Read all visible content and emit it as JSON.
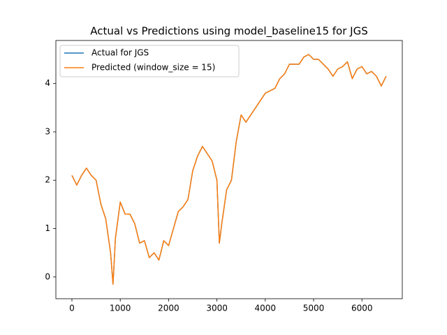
{
  "chart_data": {
    "type": "line",
    "title": "Actual vs Predictions using model_baseline15 for JGS",
    "x": [
      0,
      100,
      200,
      300,
      400,
      500,
      600,
      700,
      800,
      850,
      900,
      1000,
      1100,
      1200,
      1300,
      1400,
      1500,
      1600,
      1700,
      1800,
      1900,
      2000,
      2100,
      2200,
      2300,
      2400,
      2500,
      2600,
      2700,
      2800,
      2900,
      3000,
      3050,
      3100,
      3200,
      3300,
      3400,
      3500,
      3600,
      3700,
      3800,
      3900,
      4000,
      4100,
      4200,
      4300,
      4400,
      4500,
      4600,
      4700,
      4800,
      4900,
      5000,
      5100,
      5200,
      5300,
      5400,
      5500,
      5600,
      5700,
      5800,
      5900,
      6000,
      6100,
      6200,
      6300,
      6400,
      6500
    ],
    "series": [
      {
        "name": "Actual for JGS",
        "color": "#1f77b4",
        "values": [
          2.1,
          1.9,
          2.1,
          2.25,
          2.1,
          2.0,
          1.5,
          1.2,
          0.5,
          -0.15,
          0.8,
          1.55,
          1.3,
          1.3,
          1.1,
          0.7,
          0.75,
          0.4,
          0.5,
          0.35,
          0.75,
          0.65,
          1.0,
          1.35,
          1.45,
          1.6,
          2.2,
          2.5,
          2.7,
          2.55,
          2.4,
          2.0,
          0.7,
          1.1,
          1.8,
          2.0,
          2.8,
          3.35,
          3.2,
          3.35,
          3.5,
          3.65,
          3.8,
          3.85,
          3.9,
          4.1,
          4.2,
          4.4,
          4.4,
          4.4,
          4.55,
          4.6,
          4.5,
          4.5,
          4.4,
          4.3,
          4.15,
          4.3,
          4.35,
          4.45,
          4.1,
          4.3,
          4.35,
          4.2,
          4.25,
          4.15,
          3.95,
          4.15
        ]
      },
      {
        "name": "Predicted (window_size = 15)",
        "color": "#ff7f0e",
        "values": [
          2.1,
          1.9,
          2.1,
          2.25,
          2.1,
          2.0,
          1.5,
          1.2,
          0.5,
          -0.15,
          0.8,
          1.55,
          1.3,
          1.3,
          1.1,
          0.7,
          0.75,
          0.4,
          0.5,
          0.35,
          0.75,
          0.65,
          1.0,
          1.35,
          1.45,
          1.6,
          2.2,
          2.5,
          2.7,
          2.55,
          2.4,
          2.0,
          0.7,
          1.1,
          1.8,
          2.0,
          2.8,
          3.35,
          3.2,
          3.35,
          3.5,
          3.65,
          3.8,
          3.85,
          3.9,
          4.1,
          4.2,
          4.4,
          4.4,
          4.4,
          4.55,
          4.6,
          4.5,
          4.5,
          4.4,
          4.3,
          4.15,
          4.3,
          4.35,
          4.45,
          4.1,
          4.3,
          4.35,
          4.2,
          4.25,
          4.15,
          3.95,
          4.15
        ]
      }
    ],
    "xlim": [
      -332,
      6835
    ],
    "ylim": [
      -0.45,
      4.89
    ],
    "xticks": [
      0,
      1000,
      2000,
      3000,
      4000,
      5000,
      6000
    ],
    "yticks": [
      0,
      1,
      2,
      3,
      4
    ],
    "legend": "upper left"
  }
}
